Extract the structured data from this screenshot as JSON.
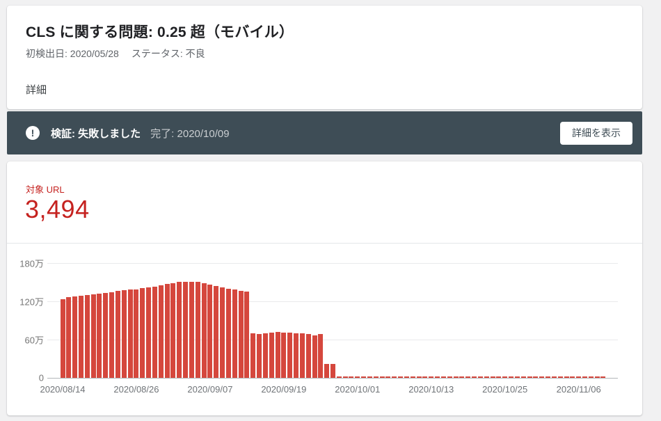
{
  "header": {
    "title": "CLS に関する問題: 0.25 超（モバイル）",
    "first_detected": "初検出日: 2020/05/28",
    "status": "ステータス: 不良",
    "details_heading": "詳細"
  },
  "banner": {
    "icon": "error-icon",
    "icon_glyph": "!",
    "status_text": "検証: 失敗しました",
    "completed_text": "完了: 2020/10/09",
    "button_label": "詳細を表示",
    "background_color": "#3e4d56",
    "text_color": "#ffffff"
  },
  "summary": {
    "label": "対象 URL",
    "count": "3,494",
    "accent_color": "#c5221f"
  },
  "chart_data": {
    "type": "bar",
    "title": "",
    "value_unit": "万 (10,000 URLs)",
    "bar_color": "#d5473d",
    "grid": "horizontal",
    "x_is_daily": true,
    "x_start_date": "2020/08/14",
    "x_end_date": "2020/11/10",
    "x_tick_interval_days": 12,
    "x_tick_labels": [
      "2020/08/14",
      "2020/08/26",
      "2020/09/07",
      "2020/09/19",
      "2020/10/01",
      "2020/10/13",
      "2020/10/25",
      "2020/11/06"
    ],
    "y_tick_labels": [
      "0",
      "60万",
      "120万",
      "180万"
    ],
    "y_gridlines_man": [
      0,
      60,
      120,
      180
    ],
    "ylim_man": [
      0,
      180
    ],
    "values_man": [
      123,
      126,
      128,
      129,
      130,
      131,
      132,
      133,
      134,
      136,
      137,
      138,
      139,
      141,
      142,
      143,
      145,
      147,
      148,
      150,
      151,
      151,
      150,
      148,
      146,
      144,
      142,
      140,
      138,
      136,
      135,
      70,
      69,
      70,
      71,
      72,
      71,
      71,
      70,
      70,
      69,
      67,
      69,
      22,
      22,
      1,
      1,
      1,
      1,
      1,
      1,
      1,
      1,
      1,
      1,
      1,
      1,
      1,
      1,
      1,
      1,
      1,
      1,
      1,
      1,
      1,
      1,
      1,
      1,
      1,
      1,
      1,
      1,
      1,
      1,
      1,
      1,
      1,
      1,
      1,
      1,
      1,
      1,
      1,
      1,
      1,
      1,
      1,
      1
    ]
  }
}
